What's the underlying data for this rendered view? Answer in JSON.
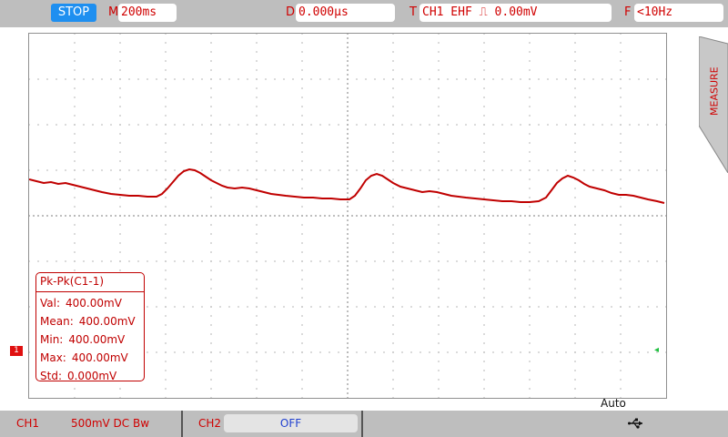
{
  "top_bar": {
    "run_state": "STOP",
    "timebase_key": "M",
    "timebase_value": "200ms",
    "delay_key": "D",
    "delay_value": "0.000µs",
    "trigger_key": "T",
    "trigger_value": "CH1  EHF ⎍  0.00mV",
    "freq_key": "F",
    "freq_value": "<10Hz"
  },
  "side_menu": {
    "measure_label": "MEASURE"
  },
  "screen": {
    "ch1_marker": "1",
    "trigger_marker": "◂",
    "acquire_mode": "Auto",
    "grid": {
      "divisions_x": 14,
      "divisions_y": 8
    }
  },
  "measurement": {
    "title": "Pk-Pk(C1-1)",
    "rows": [
      {
        "label": "Val:",
        "value": "400.00mV"
      },
      {
        "label": "Mean:",
        "value": "400.00mV"
      },
      {
        "label": "Min:",
        "value": "400.00mV"
      },
      {
        "label": "Max:",
        "value": "400.00mV"
      },
      {
        "label": "Std:",
        "value": "0.000mV"
      }
    ]
  },
  "bottom_bar": {
    "ch1_key": "CH1",
    "ch1_setting": "500mV  DC  Bw",
    "ch2_key": "CH2",
    "ch2_setting": "OFF"
  },
  "colors": {
    "trace": "#c00000",
    "bar_bg": "#bebebe",
    "stop_bg": "#1e8ff0",
    "ch2_text": "#2040d0"
  },
  "icons": {
    "usb": "usb-icon",
    "ch1_marker": "ch1-marker-icon"
  }
}
